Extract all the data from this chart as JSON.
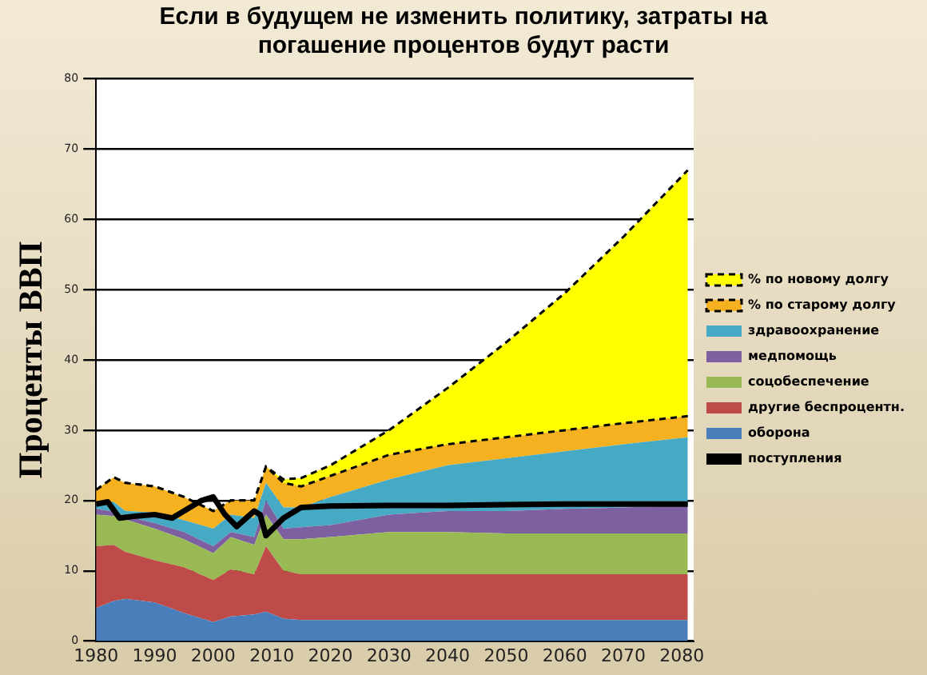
{
  "chart_data": {
    "type": "area",
    "title": "Если в будущем не изменить политику, затраты на погашение процентов будут расти",
    "ylabel": "Проценты ВВП",
    "stacked": true,
    "x": [
      1980,
      1983,
      1985,
      1990,
      1995,
      2000,
      2003,
      2007,
      2009,
      2012,
      2015,
      2020,
      2030,
      2040,
      2050,
      2060,
      2070,
      2081
    ],
    "series": [
      {
        "name": "поступления",
        "type": "line",
        "color": "#000000",
        "x": [
          1980,
          1982,
          1984,
          1987,
          1990,
          1993,
          1995,
          1998,
          2000,
          2002,
          2004,
          2007,
          2008,
          2009,
          2012,
          2015,
          2020,
          2030,
          2040,
          2050,
          2060,
          2070,
          2081
        ],
        "values": [
          19.5,
          19.8,
          17.5,
          17.8,
          18,
          17.5,
          18.5,
          20,
          20.5,
          18,
          16.3,
          18.5,
          18,
          15,
          17.5,
          19,
          19.2,
          19.3,
          19.3,
          19.4,
          19.5,
          19.5,
          19.5
        ]
      },
      {
        "name": "оборона",
        "color": "#4a7ebb",
        "values": [
          4.7,
          5.7,
          6,
          5.5,
          4,
          2.7,
          3.5,
          3.8,
          4.2,
          3.2,
          3,
          3,
          3,
          3,
          3,
          3,
          3,
          3
        ]
      },
      {
        "name": "другие беспроцентн.",
        "color": "#be4b48",
        "values": [
          8.8,
          8,
          6.7,
          6,
          6.5,
          6,
          6.7,
          5.7,
          9.3,
          6.8,
          6.5,
          6.5,
          6.5,
          6.5,
          6.5,
          6.5,
          6.5,
          6.5
        ]
      },
      {
        "name": "соцобеспечение",
        "color": "#98b954",
        "values": [
          4.5,
          4.1,
          4.6,
          4.5,
          4,
          3.8,
          4.6,
          4.2,
          4.5,
          4.5,
          5,
          5.3,
          6,
          6,
          5.8,
          5.8,
          5.8,
          5.8
        ]
      },
      {
        "name": "медпомощь",
        "color": "#7d60a0",
        "values": [
          0.8,
          0.6,
          0.5,
          0.8,
          1,
          1,
          0.7,
          1.1,
          2,
          1.5,
          1.7,
          1.7,
          2.5,
          3,
          3.2,
          3.5,
          3.7,
          4
        ]
      },
      {
        "name": "здравоохранение",
        "color": "#46aac5",
        "values": [
          0.7,
          1.4,
          0.7,
          1.5,
          1.7,
          2.5,
          2.5,
          2.7,
          2.5,
          3,
          2.8,
          4,
          5,
          6.5,
          7.5,
          8.2,
          9,
          9.7
        ]
      },
      {
        "name": "% по старому долгу",
        "color": "#f5b120",
        "line_style": "dashed",
        "values": [
          2,
          3.5,
          4,
          3.7,
          3.3,
          2.5,
          2,
          2.5,
          2.3,
          3.5,
          3,
          3,
          3.5,
          3,
          3,
          3,
          3,
          3
        ]
      },
      {
        "name": "% по новому долгу",
        "color": "#ffff00",
        "line_style": "dashed",
        "values": [
          0,
          0,
          0,
          0,
          0,
          0,
          0,
          0,
          0,
          0.5,
          1.2,
          1.5,
          3.5,
          8,
          13.5,
          19.5,
          26.5,
          35
        ]
      }
    ],
    "xlim": [
      1980,
      2082
    ],
    "xticks": [
      1980,
      1990,
      2000,
      2010,
      2020,
      2030,
      2040,
      2050,
      2060,
      2070,
      2080
    ],
    "ylim": [
      0,
      80
    ],
    "yticks": [
      0,
      10,
      20,
      30,
      40,
      50,
      60,
      70,
      80
    ],
    "grid": "y",
    "legend": "right",
    "marker": "none"
  }
}
